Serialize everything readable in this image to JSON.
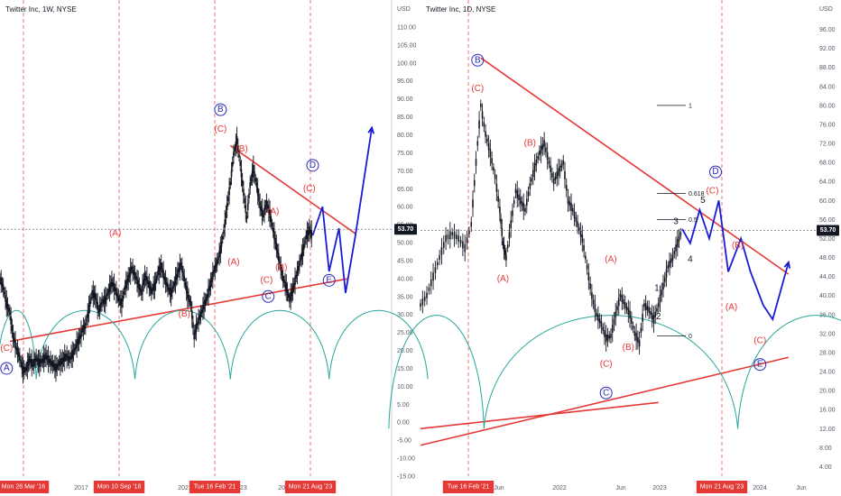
{
  "chart_data": [
    {
      "type": "line",
      "title": "Twitter Inc, 1W, NYSE",
      "y_unit": "USD",
      "ylim": [
        -15,
        112
      ],
      "price_line": {
        "value": 53.7,
        "label": "53.70"
      },
      "x_tick_labels": [
        "2017",
        "2019",
        "2021",
        "2023",
        "2025"
      ],
      "date_tags": [
        "Mon 28 Mar '16",
        "Mon 10 Sep '18",
        "Tue 16 Feb '21",
        "Mon 21 Aug '23"
      ],
      "series": [
        {
          "values": [
            [
              0,
              40.0
            ],
            [
              2,
              37.5
            ],
            [
              4,
              33.0
            ],
            [
              6,
              30.5
            ],
            [
              8,
              24.0
            ],
            [
              10,
              20.5
            ],
            [
              12,
              18.0
            ],
            [
              14,
              14.5
            ],
            [
              16,
              14.8
            ],
            [
              18,
              17.5
            ],
            [
              20,
              16.0
            ],
            [
              22,
              17.8
            ],
            [
              24,
              16.5
            ],
            [
              26,
              17.2
            ],
            [
              28,
              18.5
            ],
            [
              30,
              17.0
            ],
            [
              32,
              16.2
            ],
            [
              34,
              15.0
            ],
            [
              36,
              16.5
            ],
            [
              38,
              17.0
            ],
            [
              40,
              18.5
            ],
            [
              42,
              17.5
            ],
            [
              44,
              18.8
            ],
            [
              46,
              21.0
            ],
            [
              48,
              23.0
            ],
            [
              50,
              25.5
            ],
            [
              52,
              27.0
            ],
            [
              54,
              31.5
            ],
            [
              56,
              36.0
            ],
            [
              58,
              35.0
            ],
            [
              60,
              31.0
            ],
            [
              62,
              33.5
            ],
            [
              64,
              34.0
            ],
            [
              66,
              36.5
            ],
            [
              68,
              39.0
            ],
            [
              70,
              37.0
            ],
            [
              72,
              34.5
            ],
            [
              74,
              33.0
            ],
            [
              76,
              37.5
            ],
            [
              78,
              40.0
            ],
            [
              80,
              43.0
            ],
            [
              82,
              41.0
            ],
            [
              84,
              38.5
            ],
            [
              86,
              36.0
            ],
            [
              88,
              40.5
            ],
            [
              90,
              39.0
            ],
            [
              92,
              36.5
            ],
            [
              94,
              38.0
            ],
            [
              96,
              41.5
            ],
            [
              98,
              43.5
            ],
            [
              100,
              40.0
            ],
            [
              102,
              37.5
            ],
            [
              104,
              36.0
            ],
            [
              106,
              38.5
            ],
            [
              108,
              41.5
            ],
            [
              110,
              44.0
            ],
            [
              112,
              40.0
            ],
            [
              114,
              35.5
            ],
            [
              116,
              33.0
            ],
            [
              118,
              24.0
            ],
            [
              120,
              27.5
            ],
            [
              122,
              30.0
            ],
            [
              124,
              32.5
            ],
            [
              126,
              35.0
            ],
            [
              128,
              38.5
            ],
            [
              130,
              42.0
            ],
            [
              132,
              44.5
            ],
            [
              134,
              48.0
            ],
            [
              136,
              53.0
            ],
            [
              138,
              60.0
            ],
            [
              140,
              66.5
            ],
            [
              142,
              74.5
            ],
            [
              144,
              78.5
            ],
            [
              146,
              72.0
            ],
            [
              148,
              64.0
            ],
            [
              150,
              57.0
            ],
            [
              152,
              66.0
            ],
            [
              154,
              70.5
            ],
            [
              156,
              66.0
            ],
            [
              158,
              60.5
            ],
            [
              160,
              57.5
            ],
            [
              162,
              61.0
            ],
            [
              164,
              58.0
            ],
            [
              166,
              53.5
            ],
            [
              168,
              49.0
            ],
            [
              170,
              44.5
            ],
            [
              172,
              40.0
            ],
            [
              174,
              37.5
            ],
            [
              176,
              34.0
            ],
            [
              178,
              37.0
            ],
            [
              180,
              40.5
            ],
            [
              182,
              44.0
            ],
            [
              184,
              47.5
            ],
            [
              186,
              51.5
            ],
            [
              188,
              53.5
            ],
            [
              190,
              52.0
            ]
          ]
        }
      ],
      "projections": [
        {
          "color": "#1a1ad6",
          "points": [
            [
              190,
              52.0
            ],
            [
              196,
              60.0
            ],
            [
              200,
              42.0
            ],
            [
              206,
              54.0
            ],
            [
              210,
              36.0
            ],
            [
              216,
              52.0
            ],
            [
              226,
              82.0
            ]
          ]
        }
      ],
      "trendlines": [
        {
          "color": "#e53935",
          "points": [
            [
              6,
              22.5
            ],
            [
              212,
              40.0
            ]
          ]
        },
        {
          "color": "#e53935",
          "points": [
            [
              140,
              77.0
            ],
            [
              216,
              52.5
            ]
          ]
        }
      ],
      "cycle_lows_x": [
        22,
        82,
        140,
        200
      ],
      "labels": [
        {
          "kind": "wave",
          "text": "(C)",
          "x": 4,
          "y": 20.5
        },
        {
          "kind": "circle",
          "text": "A",
          "x": 4,
          "y": 15.0
        },
        {
          "kind": "wave",
          "text": "(A)",
          "x": 70,
          "y": 52.5
        },
        {
          "kind": "wave",
          "text": "(B)",
          "x": 112,
          "y": 30.0
        },
        {
          "kind": "circle",
          "text": "B",
          "x": 134,
          "y": 87.0
        },
        {
          "kind": "wave",
          "text": "(C)",
          "x": 134,
          "y": 81.5
        },
        {
          "kind": "wave",
          "text": "(B)",
          "x": 147,
          "y": 76.0
        },
        {
          "kind": "wave",
          "text": "(A)",
          "x": 142,
          "y": 44.5
        },
        {
          "kind": "wave",
          "text": "(A)",
          "x": 166,
          "y": 58.5
        },
        {
          "kind": "wave",
          "text": "(B)",
          "x": 171,
          "y": 43.0
        },
        {
          "kind": "wave",
          "text": "(C)",
          "x": 162,
          "y": 39.5
        },
        {
          "kind": "circle",
          "text": "C",
          "x": 163,
          "y": 35.0
        },
        {
          "kind": "circle",
          "text": "D",
          "x": 190,
          "y": 71.5
        },
        {
          "kind": "wave",
          "text": "(C)",
          "x": 188,
          "y": 65.0
        },
        {
          "kind": "circle",
          "text": "E",
          "x": 200,
          "y": 39.5
        }
      ]
    },
    {
      "type": "line",
      "title": "Twitter Inc, 1D, NYSE",
      "y_unit": "USD",
      "ylim": [
        2,
        98
      ],
      "price_line": {
        "value": 53.7,
        "label": "53.70"
      },
      "x_tick_labels": [
        "Jun",
        "2022",
        "Jun",
        "2023",
        "2024",
        "Jun"
      ],
      "date_tags": [
        "Tue 16 Feb '21",
        "Mon 21 Aug '23"
      ],
      "fib_levels": [
        {
          "label": "1",
          "value": 80.0
        },
        {
          "label": "0.618",
          "value": 61.5
        },
        {
          "label": "0.5",
          "value": 56.0
        },
        {
          "label": "0",
          "value": 31.5
        }
      ],
      "series": [
        {
          "values": [
            [
              0,
              38.0
            ],
            [
              4,
              40.0
            ],
            [
              8,
              44.0
            ],
            [
              12,
              48.0
            ],
            [
              16,
              52.0
            ],
            [
              20,
              53.0
            ],
            [
              24,
              52.0
            ],
            [
              28,
              50.0
            ],
            [
              32,
              55.0
            ],
            [
              35,
              68.0
            ],
            [
              38,
              80.0
            ],
            [
              41,
              74.0
            ],
            [
              44,
              70.0
            ],
            [
              47,
              65.0
            ],
            [
              50,
              58.0
            ],
            [
              52,
              51.0
            ],
            [
              54,
              48.0
            ],
            [
              57,
              55.0
            ],
            [
              60,
              62.0
            ],
            [
              63,
              60.0
            ],
            [
              66,
              58.0
            ],
            [
              69,
              63.0
            ],
            [
              72,
              67.0
            ],
            [
              75,
              70.0
            ],
            [
              78,
              72.0
            ],
            [
              81,
              68.0
            ],
            [
              84,
              64.0
            ],
            [
              87,
              66.0
            ],
            [
              90,
              68.0
            ],
            [
              93,
              60.0
            ],
            [
              96,
              58.0
            ],
            [
              99,
              55.0
            ],
            [
              102,
              52.0
            ],
            [
              105,
              46.0
            ],
            [
              108,
              40.0
            ],
            [
              111,
              36.0
            ],
            [
              114,
              34.0
            ],
            [
              117,
              31.0
            ],
            [
              120,
              31.5
            ],
            [
              123,
              36.0
            ],
            [
              126,
              40.0
            ],
            [
              129,
              38.0
            ],
            [
              132,
              36.0
            ],
            [
              135,
              32.0
            ],
            [
              138,
              30.0
            ],
            [
              141,
              38.0
            ],
            [
              144,
              37.0
            ],
            [
              147,
              35.0
            ],
            [
              150,
              38.0
            ],
            [
              153,
              42.0
            ],
            [
              156,
              46.0
            ],
            [
              159,
              48.0
            ],
            [
              162,
              51.0
            ],
            [
              165,
              54.0
            ]
          ]
        }
      ],
      "projections": [
        {
          "color": "#1a1ad6",
          "points": [
            [
              165,
              54.0
            ],
            [
              170,
              51.0
            ],
            [
              176,
              58.0
            ],
            [
              182,
              52.0
            ],
            [
              188,
              60.0
            ],
            [
              194,
              45.0
            ],
            [
              202,
              52.0
            ],
            [
              208,
              45.0
            ],
            [
              216,
              38.0
            ],
            [
              222,
              35.0
            ],
            [
              232,
              47.0
            ]
          ]
        }
      ],
      "trendlines": [
        {
          "color": "#e53935",
          "points": [
            [
              0,
              8.5
            ],
            [
              232,
              27.0
            ]
          ]
        },
        {
          "color": "#e53935",
          "points": [
            [
              0,
              12.0
            ],
            [
              150,
              17.5
            ]
          ]
        },
        {
          "color": "#e53935",
          "points": [
            [
              38,
              90.0
            ],
            [
              232,
              44.5
            ]
          ]
        }
      ],
      "cycle_lows_x": [
        40,
        200
      ],
      "labels": [
        {
          "kind": "circle",
          "text": "B",
          "x": 36,
          "y": 89.5
        },
        {
          "kind": "wave",
          "text": "(C)",
          "x": 36,
          "y": 83.5
        },
        {
          "kind": "wave",
          "text": "(B)",
          "x": 69,
          "y": 72.0
        },
        {
          "kind": "wave",
          "text": "(A)",
          "x": 52,
          "y": 43.5
        },
        {
          "kind": "wave",
          "text": "(A)",
          "x": 120,
          "y": 47.5
        },
        {
          "kind": "wave",
          "text": "(C)",
          "x": 117,
          "y": 25.5
        },
        {
          "kind": "circle",
          "text": "C",
          "x": 117,
          "y": 19.5
        },
        {
          "kind": "wave",
          "text": "(B)",
          "x": 131,
          "y": 29.0
        },
        {
          "kind": "num",
          "text": "1",
          "x": 149,
          "y": 41.5
        },
        {
          "kind": "num",
          "text": "2",
          "x": 150,
          "y": 35.5
        },
        {
          "kind": "num",
          "text": "3",
          "x": 161,
          "y": 55.5
        },
        {
          "kind": "num",
          "text": "4",
          "x": 170,
          "y": 47.5
        },
        {
          "kind": "num",
          "text": "5",
          "x": 178,
          "y": 60.0
        },
        {
          "kind": "circle",
          "text": "D",
          "x": 186,
          "y": 66.0
        },
        {
          "kind": "wave",
          "text": "(C)",
          "x": 184,
          "y": 62.0
        },
        {
          "kind": "wave",
          "text": "(B)",
          "x": 200,
          "y": 50.5
        },
        {
          "kind": "wave",
          "text": "(A)",
          "x": 196,
          "y": 37.5
        },
        {
          "kind": "wave",
          "text": "(C)",
          "x": 214,
          "y": 30.5
        },
        {
          "kind": "circle",
          "text": "E",
          "x": 214,
          "y": 25.5
        }
      ]
    }
  ],
  "colors": {
    "candles": "#131722",
    "price_tag_bg": "#131722",
    "date_tag_bg": "#e53935",
    "cycle_arcs": "#26a69a",
    "dashed_verticals": "#ef5350",
    "projection": "#1a1ad6",
    "wave_labels": "#e53935",
    "circle_labels": "#2a2ab8"
  }
}
